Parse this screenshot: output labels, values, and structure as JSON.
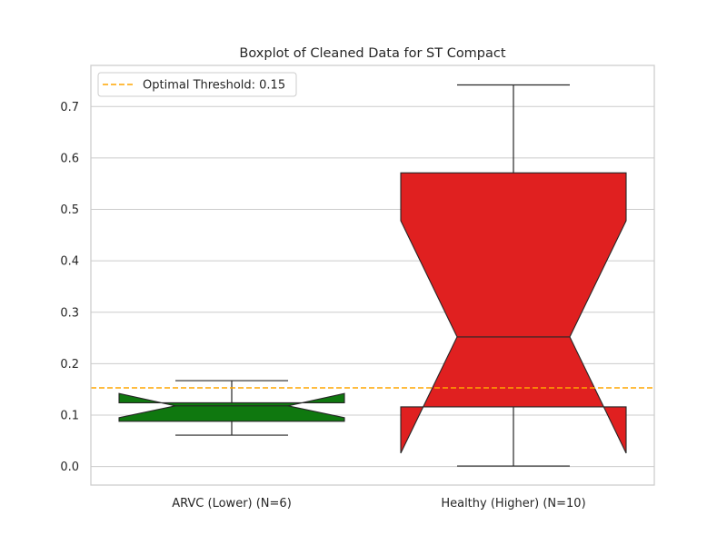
{
  "chart_data": {
    "type": "boxplot",
    "title": "Boxplot of Cleaned Data for ST Compact",
    "xlabel": "",
    "ylabel": "",
    "ylim": [
      -0.036,
      0.78
    ],
    "yticks": [
      0.0,
      0.1,
      0.2,
      0.3,
      0.4,
      0.5,
      0.6,
      0.7
    ],
    "ytick_labels": [
      "0.0",
      "0.1",
      "0.2",
      "0.3",
      "0.4",
      "0.5",
      "0.6",
      "0.7"
    ],
    "grid": "horizontal",
    "notched": true,
    "categories": [
      "ARVC (Lower) (N=6)",
      "Healthy (Higher) (N=10)"
    ],
    "boxes": [
      {
        "category": "ARVC (Lower) (N=6)",
        "whisker_low": 0.061,
        "q1": 0.088,
        "median": 0.118,
        "q3": 0.124,
        "whisker_high": 0.167,
        "notch_low": 0.095,
        "notch_high": 0.142,
        "color": "#0f780f"
      },
      {
        "category": "Healthy (Higher) (N=10)",
        "whisker_low": 0.001,
        "q1": 0.116,
        "median": 0.252,
        "q3": 0.571,
        "whisker_high": 0.742,
        "notch_low": 0.026,
        "notch_high": 0.478,
        "color": "#e02020"
      }
    ],
    "reference_line": {
      "label": "Optimal Threshold: 0.15",
      "y": 0.153,
      "color": "#ffa500",
      "style": "dashed"
    },
    "legend": {
      "placement": "top-left",
      "entries": [
        "Optimal Threshold: 0.15"
      ]
    }
  }
}
